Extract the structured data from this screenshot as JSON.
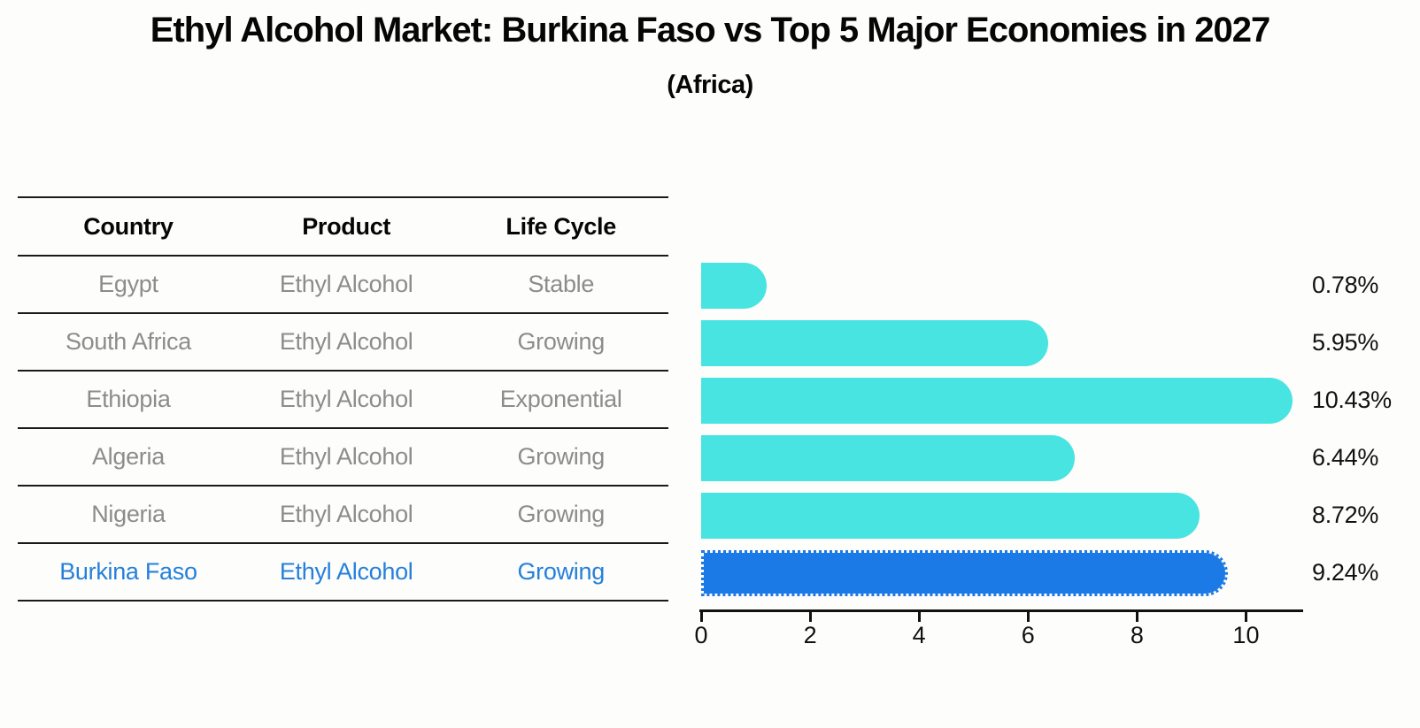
{
  "title": "Ethyl Alcohol Market: Burkina Faso vs Top 5 Major Economies in 2027",
  "subtitle": "(Africa)",
  "table": {
    "headers": {
      "country": "Country",
      "product": "Product",
      "life_cycle": "Life Cycle"
    },
    "rows": [
      {
        "country": "Egypt",
        "product": "Ethyl Alcohol",
        "life_cycle": "Stable",
        "value_label": "0.78%",
        "highlight": false
      },
      {
        "country": "South Africa",
        "product": "Ethyl Alcohol",
        "life_cycle": "Growing",
        "value_label": "5.95%",
        "highlight": false
      },
      {
        "country": "Ethiopia",
        "product": "Ethyl Alcohol",
        "life_cycle": "Exponential",
        "value_label": "10.43%",
        "highlight": false
      },
      {
        "country": "Algeria",
        "product": "Ethyl Alcohol",
        "life_cycle": "Growing",
        "value_label": "6.44%",
        "highlight": false
      },
      {
        "country": "Nigeria",
        "product": "Ethyl Alcohol",
        "life_cycle": "Growing",
        "value_label": "8.72%",
        "highlight": false
      },
      {
        "country": "Burkina Faso",
        "product": "Ethyl Alcohol",
        "life_cycle": "Growing",
        "value_label": "9.24%",
        "highlight": true
      }
    ]
  },
  "chart_data": {
    "type": "bar",
    "orientation": "horizontal",
    "title": "Ethyl Alcohol Market: Burkina Faso vs Top 5 Major Economies in 2027",
    "subtitle": "(Africa)",
    "categories": [
      "Egypt",
      "South Africa",
      "Ethiopia",
      "Algeria",
      "Nigeria",
      "Burkina Faso"
    ],
    "values": [
      0.78,
      5.95,
      10.43,
      6.44,
      8.72,
      9.24
    ],
    "value_labels": [
      "0.78%",
      "5.95%",
      "10.43%",
      "6.44%",
      "8.72%",
      "9.24%"
    ],
    "unit": "percent",
    "xlabel": "",
    "ylabel": "",
    "xlim": [
      0,
      11
    ],
    "x_ticks": [
      0,
      2,
      4,
      6,
      8,
      10
    ],
    "grid": false,
    "legend": false,
    "highlight_category": "Burkina Faso",
    "bar_color_default": "#47e4e2",
    "bar_color_highlight": "#1b7ae5",
    "highlight_border_style": "dotted"
  },
  "colors": {
    "background": "#fdfdfb",
    "bar_default": "#47e4e2",
    "bar_highlight": "#1b7ae5",
    "highlight_text": "#2580db",
    "row_text": "#8c8c8c",
    "title_text": "#060606",
    "axis": "#111111",
    "table_lines": "#1a1a1a"
  }
}
